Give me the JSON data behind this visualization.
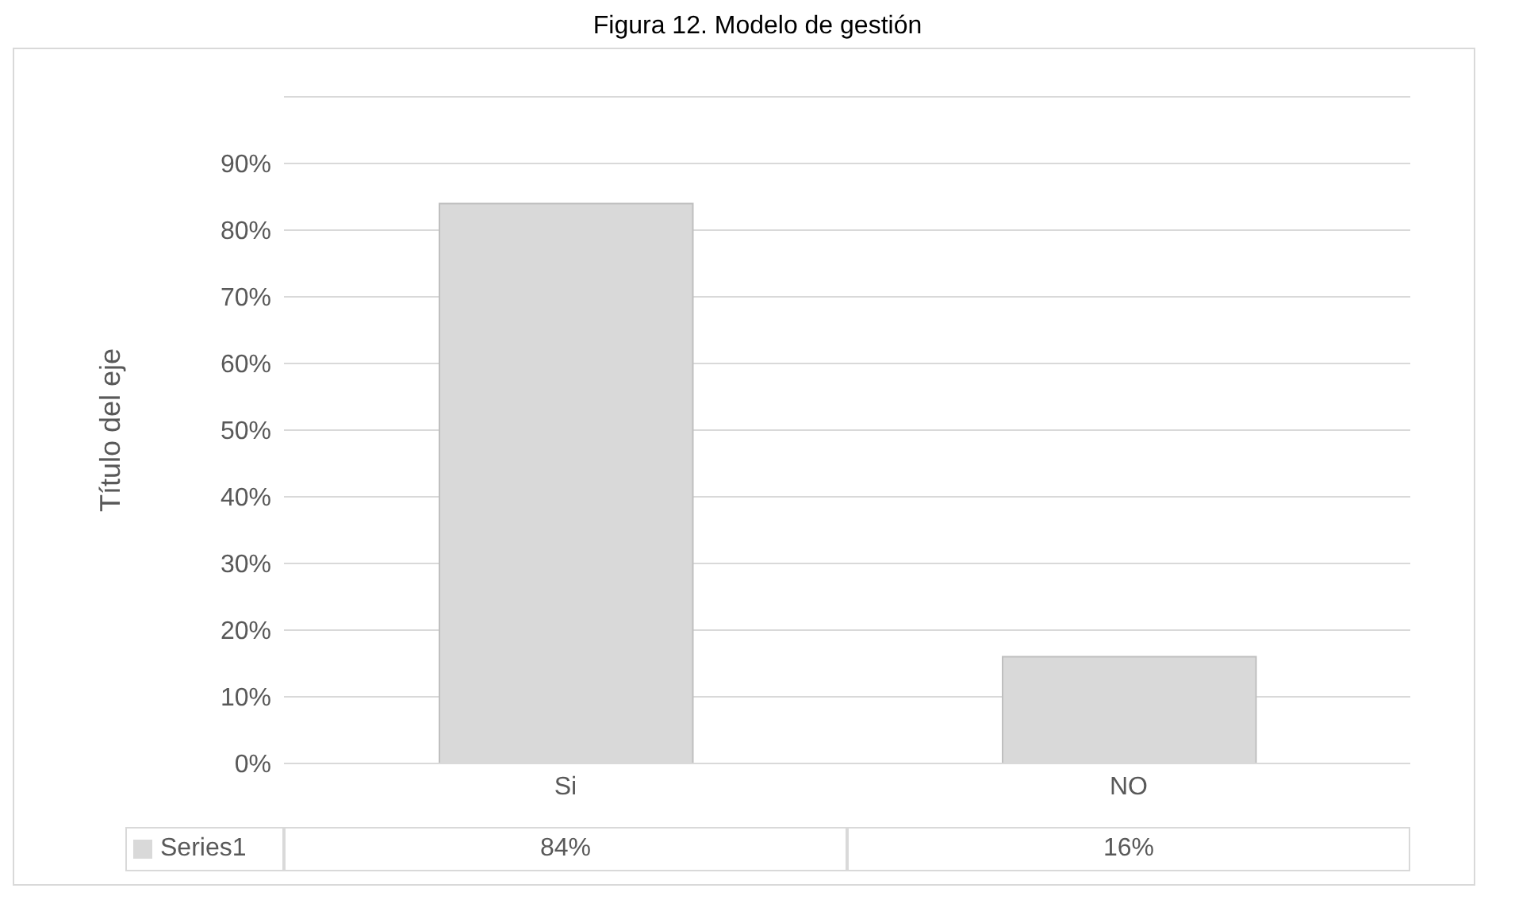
{
  "chart_data": {
    "type": "bar",
    "title": "Figura 12. Modelo de gestión",
    "ylabel": "Título del eje",
    "categories": [
      "Si",
      "NO"
    ],
    "series": [
      {
        "name": "Series1",
        "color": "#d9d9d9",
        "values": [
          84,
          16
        ]
      }
    ],
    "ylim": [
      0,
      100
    ],
    "yticks": [
      {
        "value": 0,
        "label": "0%"
      },
      {
        "value": 10,
        "label": "10%"
      },
      {
        "value": 20,
        "label": "20%"
      },
      {
        "value": 30,
        "label": "30%"
      },
      {
        "value": 40,
        "label": "40%"
      },
      {
        "value": 50,
        "label": "50%"
      },
      {
        "value": 60,
        "label": "60%"
      },
      {
        "value": 70,
        "label": "70%"
      },
      {
        "value": 80,
        "label": "80%"
      },
      {
        "value": 90,
        "label": "90%"
      },
      {
        "value": 100,
        "label": null
      }
    ],
    "value_labels": [
      "84%",
      "16%"
    ],
    "grid": "y",
    "legend": "bottom"
  }
}
